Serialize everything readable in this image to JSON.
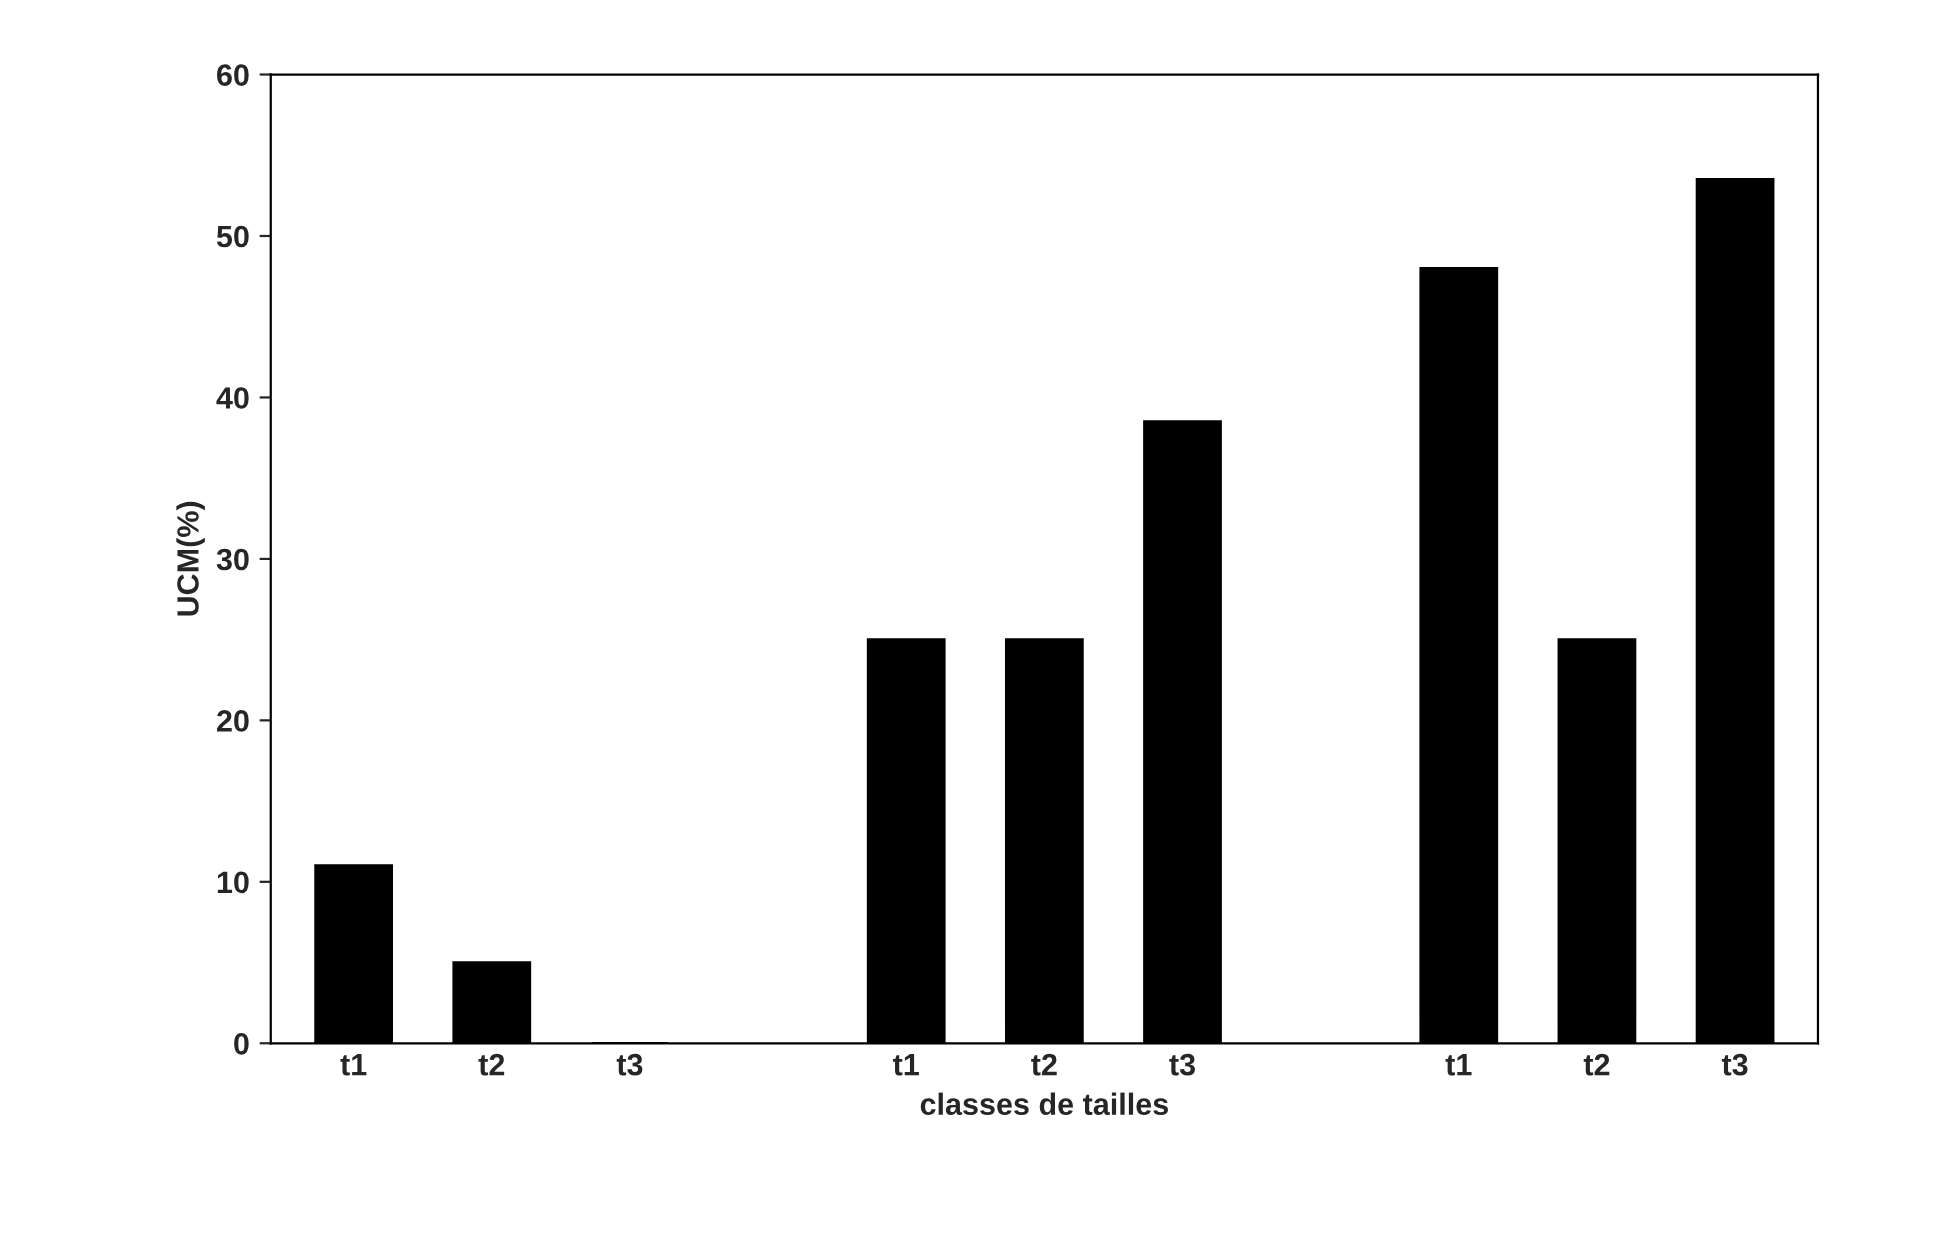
{
  "chart_data": {
    "type": "bar",
    "categories": [
      "t1",
      "t2",
      "t3",
      null,
      "t1",
      "t2",
      "t3",
      null,
      "t1",
      "t2",
      "t3"
    ],
    "values": [
      11,
      5,
      0,
      null,
      25,
      25,
      38.5,
      null,
      48,
      25,
      53.5
    ],
    "color": "#000000",
    "xlabel": "classes de tailles",
    "ylabel": "UCM(%)",
    "ylim": [
      0,
      60
    ],
    "yticks": [
      0,
      10,
      20,
      30,
      40,
      50,
      60
    ],
    "grid": false
  }
}
